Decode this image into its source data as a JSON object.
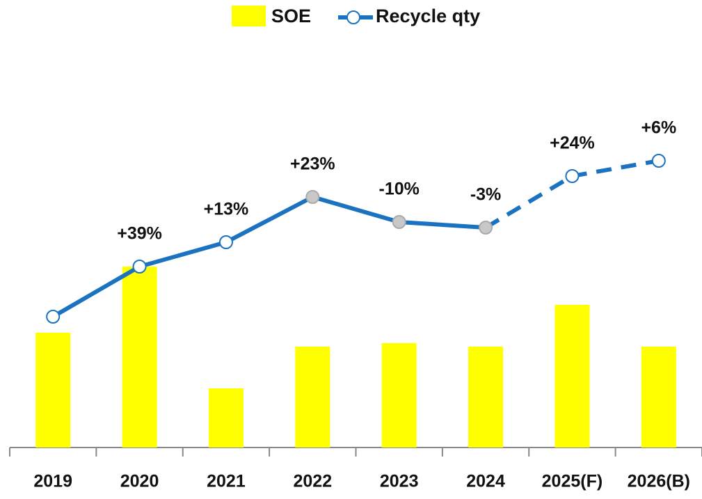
{
  "chart_data": {
    "type": "bar_line",
    "categories": [
      "2019",
      "2020",
      "2021",
      "2022",
      "2023",
      "2024",
      "2025(F)",
      "2026(B)"
    ],
    "ylim": [
      0,
      100
    ],
    "series": [
      {
        "name": "SOE",
        "type": "bar",
        "color": "#ffff00",
        "values": [
          33,
          52,
          17,
          29,
          30,
          29,
          41,
          29
        ]
      },
      {
        "name": "Recycle qty",
        "type": "line",
        "color": "#1a72c0",
        "values": [
          37.6,
          52,
          59,
          72,
          64.8,
          63.2,
          78,
          82.4
        ],
        "labels": [
          null,
          "+39%",
          "+13%",
          "+23%",
          "-10%",
          "-3%",
          "+24%",
          "+6%"
        ],
        "marker_colors": [
          "#ffffff",
          "#ffffff",
          "#ffffff",
          "#c8c8c8",
          "#c8c8c8",
          "#c8c8c8",
          "#ffffff",
          "#ffffff"
        ],
        "dashed_from_index": 5
      }
    ]
  }
}
